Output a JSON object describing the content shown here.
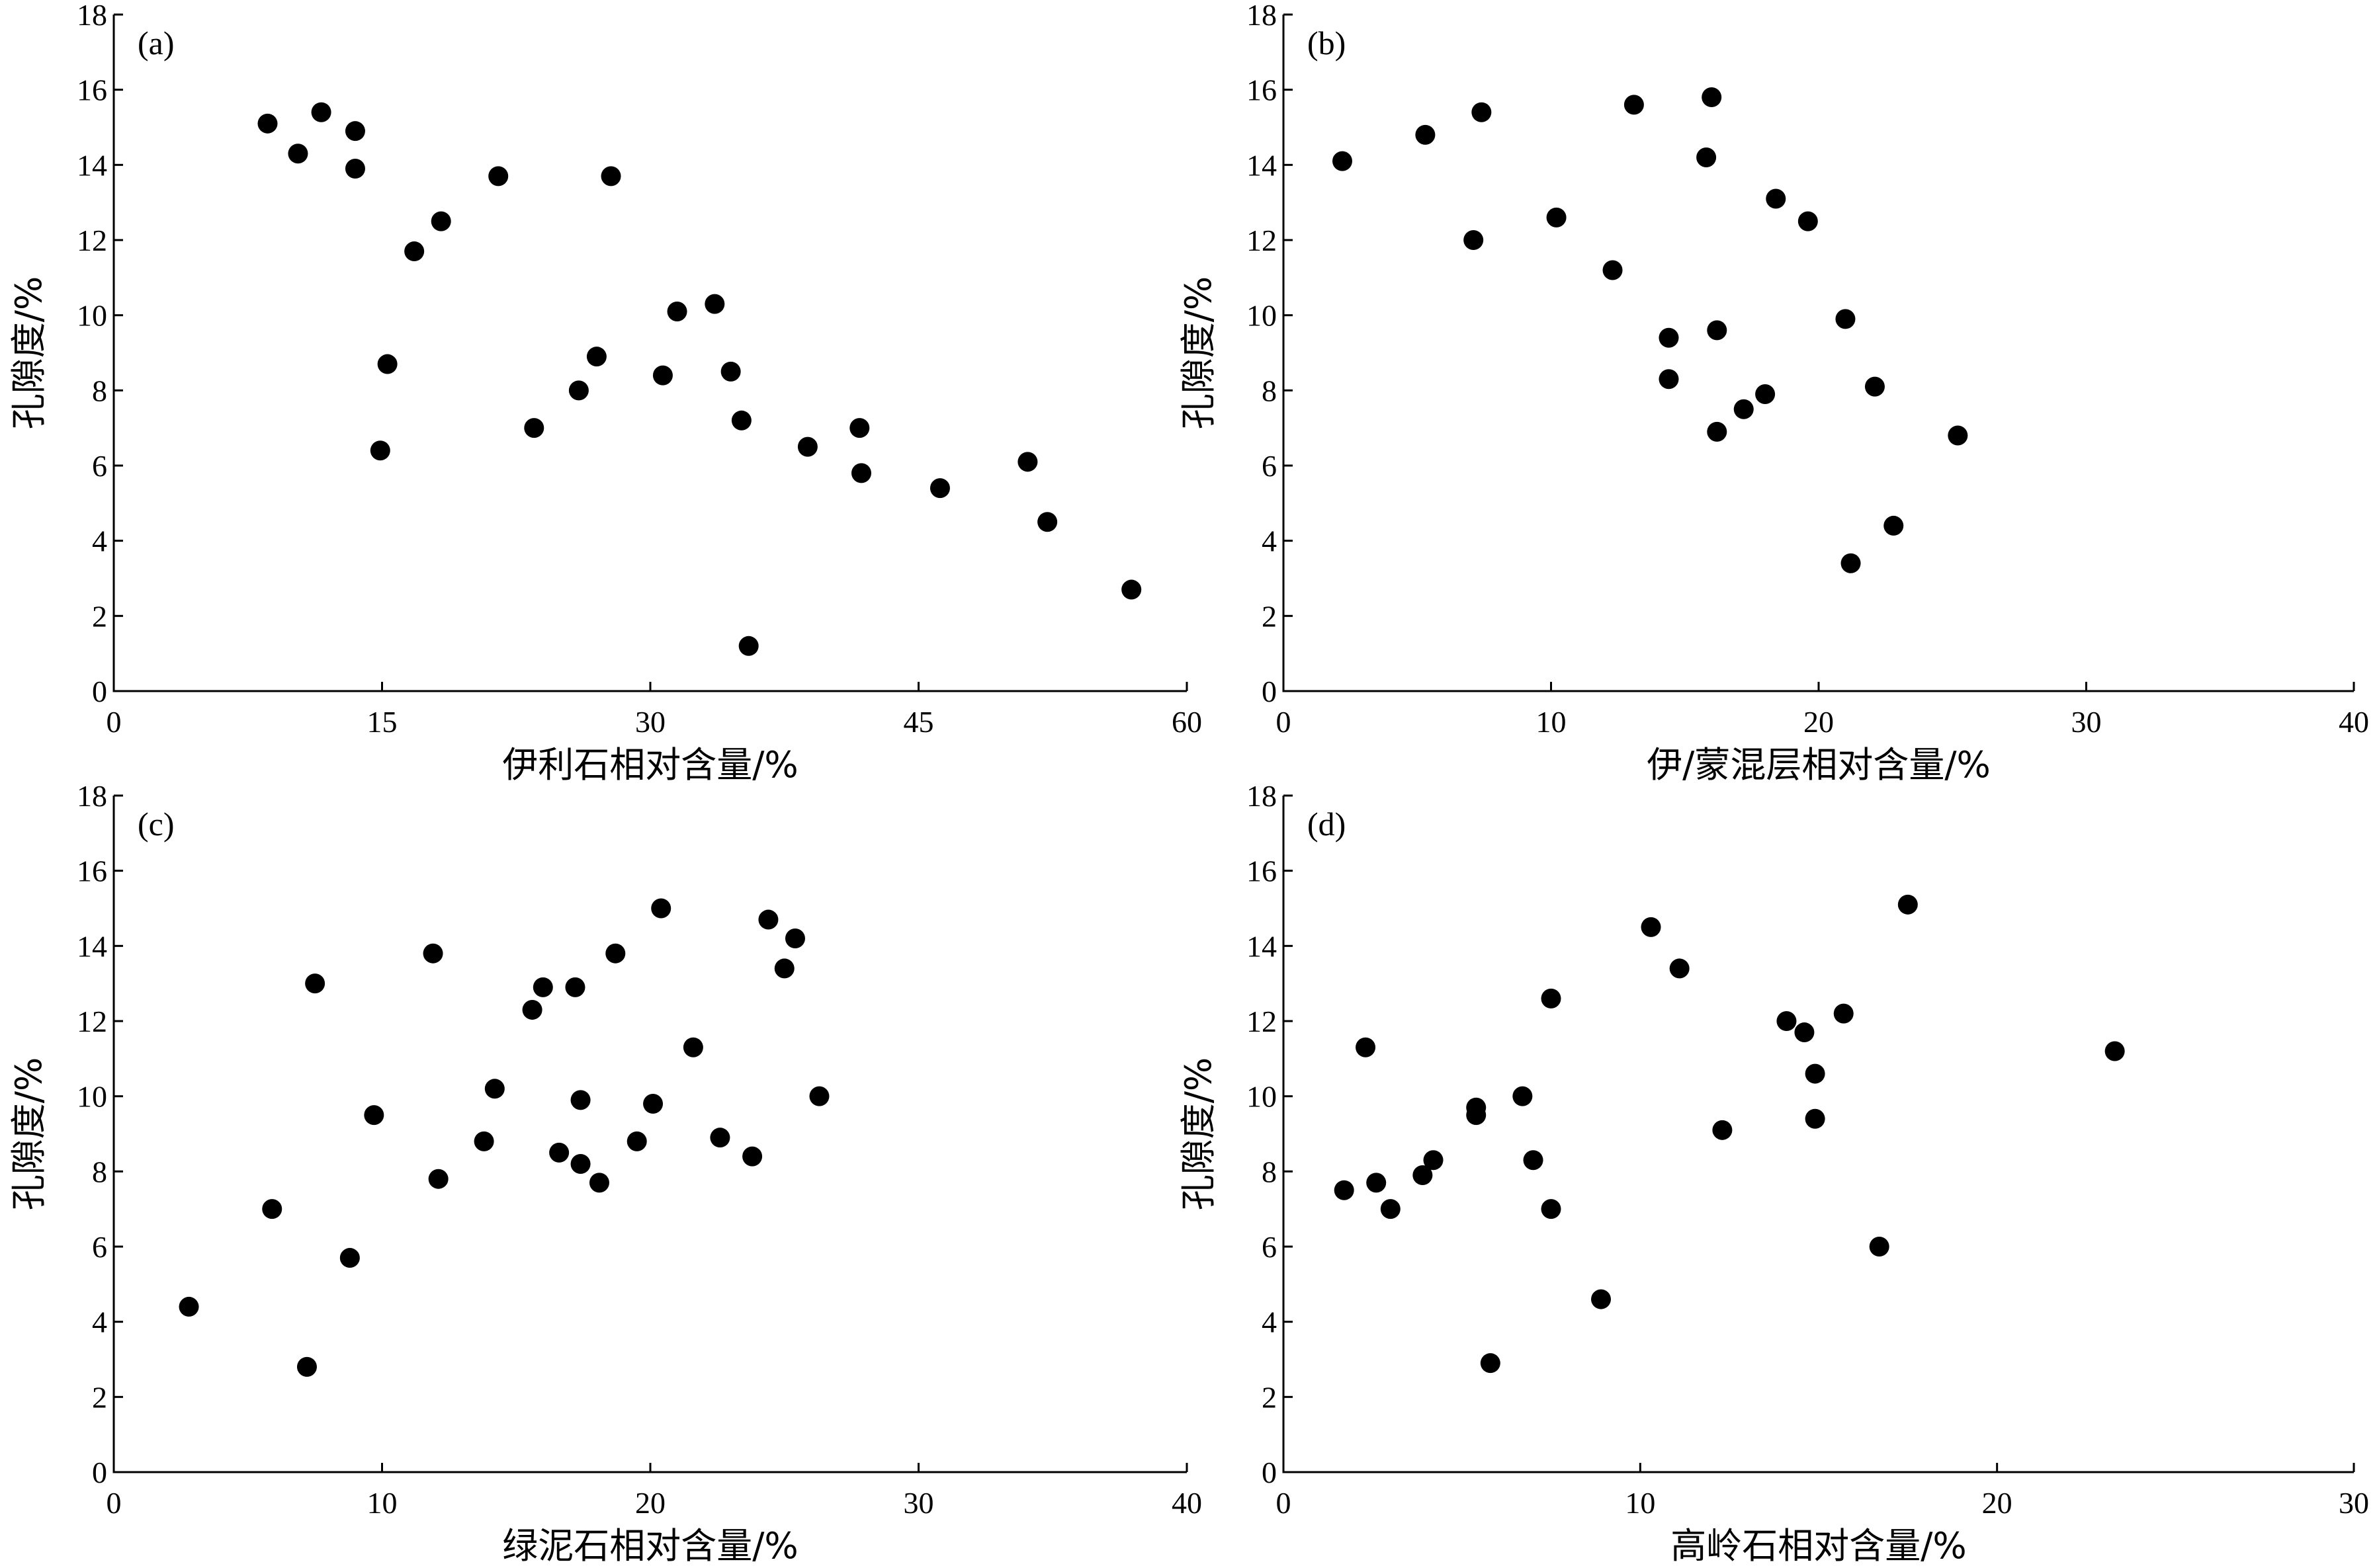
{
  "chart_data": [
    {
      "type": "scatter",
      "panel_label": "(a)",
      "xlabel": "伊利石相对含量/%",
      "ylabel": "孔隙度/%",
      "xlim": [
        0,
        60
      ],
      "ylim": [
        0,
        18
      ],
      "xticks": [
        0,
        15,
        30,
        45,
        60
      ],
      "yticks": [
        0,
        2,
        4,
        6,
        8,
        10,
        12,
        14,
        16,
        18
      ],
      "grid": false,
      "points": [
        {
          "x": 8.6,
          "y": 15.1
        },
        {
          "x": 10.3,
          "y": 14.3
        },
        {
          "x": 11.6,
          "y": 15.4
        },
        {
          "x": 13.5,
          "y": 14.9
        },
        {
          "x": 13.5,
          "y": 13.9
        },
        {
          "x": 21.5,
          "y": 13.7
        },
        {
          "x": 27.8,
          "y": 13.7
        },
        {
          "x": 18.3,
          "y": 12.5
        },
        {
          "x": 16.8,
          "y": 11.7
        },
        {
          "x": 15.3,
          "y": 8.7
        },
        {
          "x": 14.9,
          "y": 6.4
        },
        {
          "x": 23.5,
          "y": 7.0
        },
        {
          "x": 26.0,
          "y": 8.0
        },
        {
          "x": 27.0,
          "y": 8.9
        },
        {
          "x": 31.5,
          "y": 10.1
        },
        {
          "x": 33.6,
          "y": 10.3
        },
        {
          "x": 30.7,
          "y": 8.4
        },
        {
          "x": 34.5,
          "y": 8.5
        },
        {
          "x": 35.1,
          "y": 7.2
        },
        {
          "x": 38.8,
          "y": 6.5
        },
        {
          "x": 41.7,
          "y": 7.0
        },
        {
          "x": 41.8,
          "y": 5.8
        },
        {
          "x": 46.2,
          "y": 5.4
        },
        {
          "x": 51.1,
          "y": 6.1
        },
        {
          "x": 52.2,
          "y": 4.5
        },
        {
          "x": 56.9,
          "y": 2.7
        },
        {
          "x": 35.5,
          "y": 1.2
        }
      ]
    },
    {
      "type": "scatter",
      "panel_label": "(b)",
      "xlabel": "伊/蒙混层相对含量/%",
      "ylabel": "孔隙度/%",
      "xlim": [
        0,
        40
      ],
      "ylim": [
        0,
        18
      ],
      "xticks": [
        0,
        10,
        20,
        30,
        40
      ],
      "yticks": [
        0,
        2,
        4,
        6,
        8,
        10,
        12,
        14,
        16,
        18
      ],
      "grid": false,
      "points": [
        {
          "x": 2.2,
          "y": 14.1
        },
        {
          "x": 5.3,
          "y": 14.8
        },
        {
          "x": 7.4,
          "y": 15.4
        },
        {
          "x": 7.1,
          "y": 12.0
        },
        {
          "x": 10.2,
          "y": 12.6
        },
        {
          "x": 13.1,
          "y": 15.6
        },
        {
          "x": 16.0,
          "y": 15.8
        },
        {
          "x": 15.8,
          "y": 14.2
        },
        {
          "x": 18.4,
          "y": 13.1
        },
        {
          "x": 19.6,
          "y": 12.5
        },
        {
          "x": 12.3,
          "y": 11.2
        },
        {
          "x": 14.4,
          "y": 9.4
        },
        {
          "x": 16.2,
          "y": 9.6
        },
        {
          "x": 14.4,
          "y": 8.3
        },
        {
          "x": 18.0,
          "y": 7.9
        },
        {
          "x": 17.2,
          "y": 7.5
        },
        {
          "x": 16.2,
          "y": 6.9
        },
        {
          "x": 21.0,
          "y": 9.9
        },
        {
          "x": 22.1,
          "y": 8.1
        },
        {
          "x": 25.2,
          "y": 6.8
        },
        {
          "x": 22.8,
          "y": 4.4
        },
        {
          "x": 21.2,
          "y": 3.4
        }
      ]
    },
    {
      "type": "scatter",
      "panel_label": "(c)",
      "xlabel": "绿泥石相对含量/%",
      "ylabel": "孔隙度/%",
      "xlim": [
        0,
        40
      ],
      "ylim": [
        0,
        18
      ],
      "xticks": [
        0,
        10,
        20,
        30,
        40
      ],
      "yticks": [
        0,
        2,
        4,
        6,
        8,
        10,
        12,
        14,
        16,
        18
      ],
      "grid": false,
      "points": [
        {
          "x": 2.8,
          "y": 4.4
        },
        {
          "x": 5.9,
          "y": 7.0
        },
        {
          "x": 7.2,
          "y": 2.8
        },
        {
          "x": 7.5,
          "y": 13.0
        },
        {
          "x": 8.8,
          "y": 5.7
        },
        {
          "x": 9.7,
          "y": 9.5
        },
        {
          "x": 11.9,
          "y": 13.8
        },
        {
          "x": 12.1,
          "y": 7.8
        },
        {
          "x": 13.8,
          "y": 8.8
        },
        {
          "x": 14.2,
          "y": 10.2
        },
        {
          "x": 15.6,
          "y": 12.3
        },
        {
          "x": 16.0,
          "y": 12.9
        },
        {
          "x": 17.2,
          "y": 12.9
        },
        {
          "x": 16.6,
          "y": 8.5
        },
        {
          "x": 17.4,
          "y": 9.9
        },
        {
          "x": 17.4,
          "y": 8.2
        },
        {
          "x": 18.1,
          "y": 7.7
        },
        {
          "x": 18.7,
          "y": 13.8
        },
        {
          "x": 19.5,
          "y": 8.8
        },
        {
          "x": 20.1,
          "y": 9.8
        },
        {
          "x": 20.4,
          "y": 15.0
        },
        {
          "x": 21.6,
          "y": 11.3
        },
        {
          "x": 22.6,
          "y": 8.9
        },
        {
          "x": 23.8,
          "y": 8.4
        },
        {
          "x": 24.4,
          "y": 14.7
        },
        {
          "x": 25.0,
          "y": 13.4
        },
        {
          "x": 25.4,
          "y": 14.2
        },
        {
          "x": 26.3,
          "y": 10.0
        }
      ]
    },
    {
      "type": "scatter",
      "panel_label": "(d)",
      "xlabel": "高岭石相对含量/%",
      "ylabel": "孔隙度/%",
      "xlim": [
        0,
        30
      ],
      "ylim": [
        0,
        18
      ],
      "xticks": [
        0,
        10,
        20,
        30
      ],
      "yticks": [
        0,
        2,
        4,
        6,
        8,
        10,
        12,
        14,
        16,
        18
      ],
      "grid": false,
      "points": [
        {
          "x": 1.7,
          "y": 7.5
        },
        {
          "x": 2.3,
          "y": 11.3
        },
        {
          "x": 2.6,
          "y": 7.7
        },
        {
          "x": 3.0,
          "y": 7.0
        },
        {
          "x": 3.9,
          "y": 7.9
        },
        {
          "x": 4.2,
          "y": 8.3
        },
        {
          "x": 5.4,
          "y": 9.7
        },
        {
          "x": 5.4,
          "y": 9.5
        },
        {
          "x": 5.8,
          "y": 2.9
        },
        {
          "x": 6.7,
          "y": 10.0
        },
        {
          "x": 7.0,
          "y": 8.3
        },
        {
          "x": 7.5,
          "y": 12.6
        },
        {
          "x": 7.5,
          "y": 7.0
        },
        {
          "x": 8.9,
          "y": 4.6
        },
        {
          "x": 10.3,
          "y": 14.5
        },
        {
          "x": 11.1,
          "y": 13.4
        },
        {
          "x": 12.3,
          "y": 9.1
        },
        {
          "x": 14.1,
          "y": 12.0
        },
        {
          "x": 14.6,
          "y": 11.7
        },
        {
          "x": 14.9,
          "y": 10.6
        },
        {
          "x": 14.9,
          "y": 9.4
        },
        {
          "x": 15.7,
          "y": 12.2
        },
        {
          "x": 16.7,
          "y": 6.0
        },
        {
          "x": 17.5,
          "y": 15.1
        },
        {
          "x": 23.3,
          "y": 11.2
        }
      ]
    }
  ]
}
